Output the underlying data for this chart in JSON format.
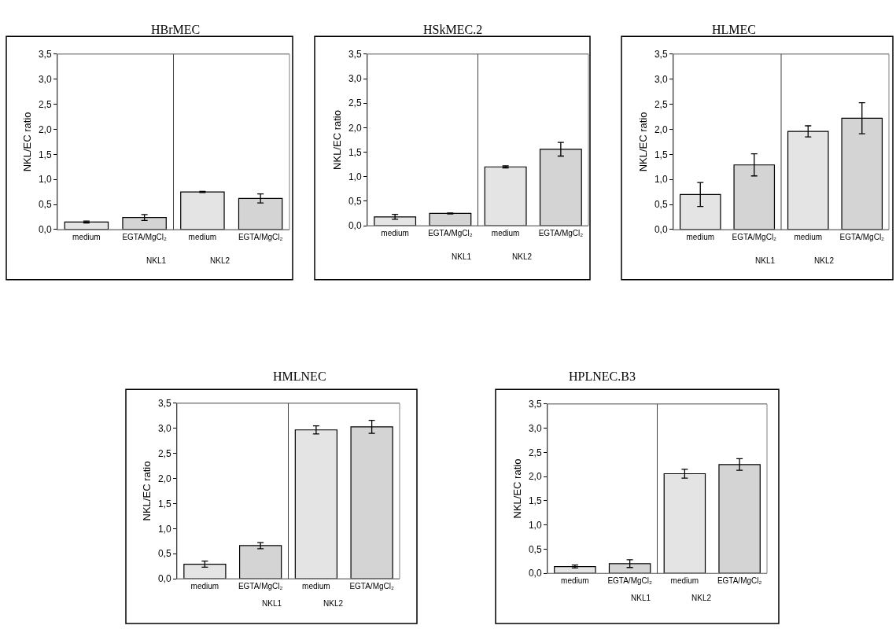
{
  "chart_data": [
    {
      "type": "bar",
      "title": "HBrMEC",
      "ylabel": "NKL/EC ratio",
      "categories": [
        "medium",
        "EGTA/MgCl₂",
        "medium",
        "EGTA/MgCl₂"
      ],
      "values": [
        0.15,
        0.24,
        0.75,
        0.62
      ],
      "errors": [
        0.02,
        0.06,
        0.01,
        0.09
      ],
      "colors": [
        "#e4e4e4",
        "#d4d4d4",
        "#e4e4e4",
        "#d4d4d4"
      ],
      "ylim": [
        0,
        3.5
      ],
      "yticks": [
        {
          "value": 0,
          "label": "0,0"
        },
        {
          "value": 0.5,
          "label": "0,5"
        },
        {
          "value": 1,
          "label": "1,0"
        },
        {
          "value": 1.5,
          "label": "1,5"
        },
        {
          "value": 2,
          "label": "2,0"
        },
        {
          "value": 2.5,
          "label": "2,5"
        },
        {
          "value": 3,
          "label": "3,0"
        },
        {
          "value": 3.5,
          "label": "3,5"
        }
      ],
      "annotations": [
        "NKL1",
        "NKL2"
      ]
    },
    {
      "type": "bar",
      "title": "HSkMEC.2",
      "ylabel": "NKL/EC ratio",
      "categories": [
        "medium",
        "EGTA/MgCl₂",
        "medium",
        "EGTA/MgCl₂"
      ],
      "values": [
        0.18,
        0.25,
        1.2,
        1.56
      ],
      "errors": [
        0.05,
        0.01,
        0.02,
        0.14
      ],
      "colors": [
        "#e4e4e4",
        "#d4d4d4",
        "#e4e4e4",
        "#d4d4d4"
      ],
      "ylim": [
        0,
        3.5
      ],
      "yticks": [
        {
          "value": 0,
          "label": "0,0"
        },
        {
          "value": 0.5,
          "label": "0,5"
        },
        {
          "value": 1,
          "label": "1,0"
        },
        {
          "value": 1.5,
          "label": "1,5"
        },
        {
          "value": 2,
          "label": "2,0"
        },
        {
          "value": 2.5,
          "label": "2,5"
        },
        {
          "value": 3,
          "label": "3,0"
        },
        {
          "value": 3.5,
          "label": "3,5"
        }
      ],
      "annotations": [
        "NKL1",
        "NKL2"
      ]
    },
    {
      "type": "bar",
      "title": "HLMEC",
      "ylabel": "NKL/EC ratio",
      "categories": [
        "medium",
        "EGTA/MgCl₂",
        "medium",
        "EGTA/MgCl₂"
      ],
      "values": [
        0.7,
        1.29,
        1.96,
        2.22
      ],
      "errors": [
        0.24,
        0.22,
        0.11,
        0.31
      ],
      "colors": [
        "#e4e4e4",
        "#d4d4d4",
        "#e4e4e4",
        "#d4d4d4"
      ],
      "ylim": [
        0,
        3.5
      ],
      "yticks": [
        {
          "value": 0,
          "label": "0,0"
        },
        {
          "value": 0.5,
          "label": "0,5"
        },
        {
          "value": 1,
          "label": "1,0"
        },
        {
          "value": 1.5,
          "label": "1,5"
        },
        {
          "value": 2,
          "label": "2,0"
        },
        {
          "value": 2.5,
          "label": "2,5"
        },
        {
          "value": 3,
          "label": "3,0"
        },
        {
          "value": 3.5,
          "label": "3,5"
        }
      ],
      "annotations": [
        "NKL1",
        "NKL2"
      ]
    },
    {
      "type": "bar",
      "title": "HMLNEC",
      "ylabel": "NKL/EC ratio",
      "categories": [
        "medium",
        "EGTA/MgCl₂",
        "medium",
        "EGTA/MgCl₂"
      ],
      "values": [
        0.29,
        0.66,
        2.97,
        3.03
      ],
      "errors": [
        0.06,
        0.06,
        0.08,
        0.13
      ],
      "colors": [
        "#e4e4e4",
        "#d4d4d4",
        "#e4e4e4",
        "#d4d4d4"
      ],
      "ylim": [
        0,
        3.5
      ],
      "yticks": [
        {
          "value": 0,
          "label": "0,0"
        },
        {
          "value": 0.5,
          "label": "0,5"
        },
        {
          "value": 1,
          "label": "1,0"
        },
        {
          "value": 1.5,
          "label": "1,5"
        },
        {
          "value": 2,
          "label": "2,0"
        },
        {
          "value": 2.5,
          "label": "2,5"
        },
        {
          "value": 3,
          "label": "3,0"
        },
        {
          "value": 3.5,
          "label": "3,5"
        }
      ],
      "annotations": [
        "NKL1",
        "NKL2"
      ]
    },
    {
      "type": "bar",
      "title": "HPLNEC.B3",
      "ylabel": "NKL/EC ratio",
      "categories": [
        "medium",
        "EGTA/MgCl₂",
        "medium",
        "EGTA/MgCl₂"
      ],
      "values": [
        0.14,
        0.2,
        2.06,
        2.25
      ],
      "errors": [
        0.03,
        0.08,
        0.09,
        0.12
      ],
      "colors": [
        "#e4e4e4",
        "#d4d4d4",
        "#e4e4e4",
        "#d4d4d4"
      ],
      "ylim": [
        0,
        3.5
      ],
      "yticks": [
        {
          "value": 0,
          "label": "0,0"
        },
        {
          "value": 0.5,
          "label": "0,5"
        },
        {
          "value": 1,
          "label": "1,0"
        },
        {
          "value": 1.5,
          "label": "1,5"
        },
        {
          "value": 2,
          "label": "2,0"
        },
        {
          "value": 2.5,
          "label": "2,5"
        },
        {
          "value": 3,
          "label": "3,0"
        },
        {
          "value": 3.5,
          "label": "3,5"
        }
      ],
      "annotations": [
        "NKL1",
        "NKL2"
      ]
    }
  ]
}
